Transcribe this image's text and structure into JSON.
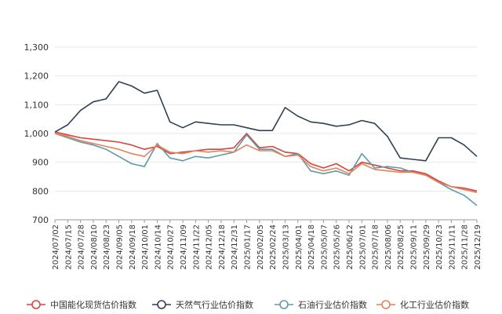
{
  "chart_data": {
    "type": "line",
    "title": "",
    "xlabel": "",
    "ylabel": "",
    "ylim": [
      700,
      1300
    ],
    "yticks": [
      "700",
      "800",
      "900",
      "1,000",
      "1,100",
      "1,200",
      "1,300"
    ],
    "grid": true,
    "legend_position": "bottom",
    "x_tick_labels": [
      "2024/07/02",
      "2024/07/15",
      "2024/07/28",
      "2024/08/10",
      "2024/08/23",
      "2024/09/05",
      "2024/09/18",
      "2024/10/01",
      "2024/10/14",
      "2024/10/27",
      "2024/11/09",
      "2024/11/22",
      "2024/12/05",
      "2024/12/18",
      "2024/12/31",
      "2025/01/17",
      "2025/02/05",
      "2025/02/24",
      "2025/03/13",
      "2025/04/01",
      "2025/04/18",
      "2025/05/07",
      "2025/05/26",
      "2025/06/12",
      "2025/07/01",
      "2025/07/18",
      "2025/08/06",
      "2025/08/25",
      "2025/09/11",
      "2025/09/29",
      "2025/10/23",
      "2025/11/11",
      "2025/11/28",
      "2025/12/19"
    ],
    "series": [
      {
        "name": "中国能化现货估价指数",
        "color": "#d6453c",
        "values": [
          1005,
          995,
          985,
          980,
          975,
          970,
          960,
          945,
          955,
          930,
          935,
          940,
          945,
          945,
          950,
          1000,
          950,
          955,
          935,
          930,
          895,
          880,
          895,
          870,
          900,
          890,
          880,
          870,
          870,
          860,
          835,
          815,
          810,
          800
        ]
      },
      {
        "name": "天然气行业估价指数",
        "color": "#2e4154",
        "values": [
          1005,
          1030,
          1080,
          1110,
          1120,
          1180,
          1165,
          1140,
          1150,
          1040,
          1020,
          1040,
          1035,
          1030,
          1030,
          1020,
          1010,
          1010,
          1090,
          1060,
          1040,
          1035,
          1025,
          1030,
          1045,
          1035,
          990,
          915,
          910,
          905,
          985,
          985,
          960,
          920
        ]
      },
      {
        "name": "石油行业估价指数",
        "color": "#5f9aa8",
        "values": [
          1000,
          985,
          970,
          960,
          945,
          920,
          895,
          885,
          965,
          915,
          905,
          920,
          915,
          925,
          935,
          995,
          945,
          945,
          920,
          930,
          870,
          860,
          870,
          855,
          930,
          880,
          885,
          880,
          865,
          855,
          830,
          805,
          785,
          750
        ]
      },
      {
        "name": "化工行业估价指数",
        "color": "#e3825a",
        "values": [
          1000,
          990,
          975,
          965,
          955,
          945,
          930,
          920,
          960,
          935,
          930,
          940,
          935,
          940,
          935,
          960,
          940,
          940,
          920,
          925,
          885,
          870,
          880,
          860,
          895,
          875,
          870,
          865,
          865,
          855,
          830,
          815,
          805,
          795
        ]
      }
    ]
  }
}
